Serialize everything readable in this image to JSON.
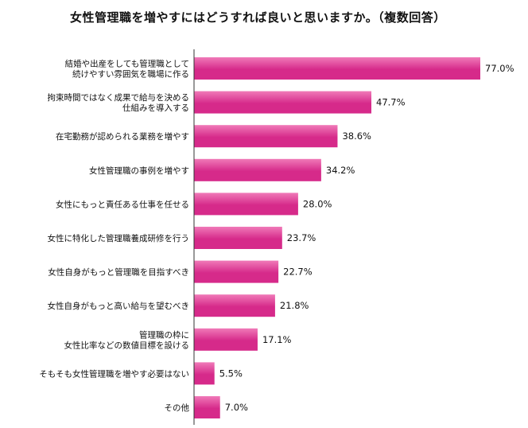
{
  "chart_data": {
    "type": "bar",
    "orientation": "horizontal",
    "title": "女性管理職を増やすにはどうすれば良いと思いますか。（複数回答）",
    "xlabel": "",
    "ylabel": "",
    "xlim": [
      0,
      100
    ],
    "grid": false,
    "legend": "none",
    "bar_color": "#d62a8a",
    "bar_color_light": "#f07ab8",
    "axis_color": "#333333",
    "categories": [
      [
        "結婚や出産をしても管理職として",
        "続けやすい雰囲気を職場に作る"
      ],
      [
        "拘束時間ではなく成果で給与を決める",
        "仕組みを導入する"
      ],
      [
        "在宅勤務が認められる業務を増やす"
      ],
      [
        "女性管理職の事例を増やす"
      ],
      [
        "女性にもっと責任ある仕事を任せる"
      ],
      [
        "女性に特化した管理職養成研修を行う"
      ],
      [
        "女性自身がもっと管理職を目指すべき"
      ],
      [
        "女性自身がもっと高い給与を望むべき"
      ],
      [
        "管理職の枠に",
        "女性比率などの数値目標を設ける"
      ],
      [
        "そもそも女性管理職を増やす必要はない"
      ],
      [
        "その他"
      ]
    ],
    "values": [
      77.0,
      47.7,
      38.6,
      34.2,
      28.0,
      23.7,
      22.7,
      21.8,
      17.1,
      5.5,
      7.0
    ],
    "value_labels": [
      "77.0%",
      "47.7%",
      "38.6%",
      "34.2%",
      "28.0%",
      "23.7%",
      "22.7%",
      "21.8%",
      "17.1%",
      "5.5%",
      "7.0%"
    ]
  }
}
